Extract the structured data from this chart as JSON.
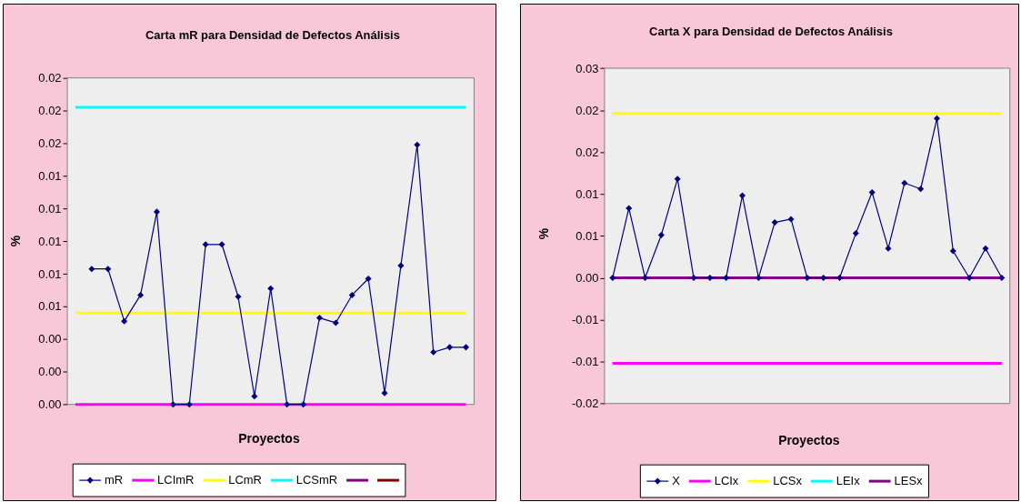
{
  "chart_data": [
    {
      "type": "line",
      "title": "Carta mR para Densidad de Defectos Análisis",
      "xlabel": "Proyectos",
      "ylabel": "%",
      "categories": [
        null,
        null,
        null,
        null,
        null,
        null,
        null,
        null,
        null,
        null,
        null,
        null,
        null,
        null,
        null,
        null,
        null,
        null,
        null,
        null,
        null,
        null,
        null,
        null,
        null
      ],
      "ylim": [
        0,
        0.02
      ],
      "yticks": [
        {
          "value": 0,
          "label": "0.00"
        },
        {
          "value": 0.002,
          "label": "0.00"
        },
        {
          "value": 0.004,
          "label": "0.00"
        },
        {
          "value": 0.006,
          "label": "0.01"
        },
        {
          "value": 0.008,
          "label": "0.01"
        },
        0.01,
        {
          "value": 0.012,
          "label": "0.01"
        },
        {
          "value": 0.014,
          "label": "0.01"
        },
        {
          "value": 0.016,
          "label": "0.02"
        },
        {
          "value": 0.018,
          "label": "0.02"
        },
        0.02
      ],
      "tick_labels": "y",
      "legend": "bottom",
      "series": [
        {
          "name": "mR",
          "color": "#000080",
          "marker": "diamond",
          "values": [
            null,
            0.0083,
            0.0083,
            0.0051,
            0.0067,
            0.0118,
            0,
            0,
            0.0098,
            0.0098,
            0.0066,
            0.0005,
            0.0071,
            0,
            0,
            0.0053,
            0.005,
            0.0067,
            0.0077,
            0.0007,
            0.0085,
            0.0159,
            0.0032,
            0.0035,
            0.0035
          ]
        },
        {
          "name": "LCImR",
          "color": "#ff00ff",
          "values": [
            0,
            0,
            0,
            0,
            0,
            0,
            0,
            0,
            0,
            0,
            0,
            0,
            0,
            0,
            0,
            0,
            0,
            0,
            0,
            0,
            0,
            0,
            0,
            0,
            0
          ]
        },
        {
          "name": "LCmR",
          "color": "#ffff00",
          "values": [
            0.0056,
            0.0056,
            0.0056,
            0.0056,
            0.0056,
            0.0056,
            0.0056,
            0.0056,
            0.0056,
            0.0056,
            0.0056,
            0.0056,
            0.0056,
            0.0056,
            0.0056,
            0.0056,
            0.0056,
            0.0056,
            0.0056,
            0.0056,
            0.0056,
            0.0056,
            0.0056,
            0.0056,
            0.0056
          ]
        },
        {
          "name": "LCSmR",
          "color": "#00ffff",
          "values": [
            0.0182,
            0.0182,
            0.0182,
            0.0182,
            0.0182,
            0.0182,
            0.0182,
            0.0182,
            0.0182,
            0.0182,
            0.0182,
            0.0182,
            0.0182,
            0.0182,
            0.0182,
            0.0182,
            0.0182,
            0.0182,
            0.0182,
            0.0182,
            0.0182,
            0.0182,
            0.0182,
            0.0182,
            0.0182
          ]
        },
        {
          "color": "#800080",
          "values": [
            null,
            null,
            null,
            null,
            null,
            null,
            null,
            null,
            null,
            null,
            null,
            null,
            null,
            null,
            null,
            null,
            null,
            null,
            null,
            null,
            null,
            null,
            null,
            null,
            null
          ]
        },
        {
          "color": "#800000",
          "values": [
            null,
            null,
            null,
            null,
            null,
            null,
            null,
            null,
            null,
            null,
            null,
            null,
            null,
            null,
            null,
            null,
            null,
            null,
            null,
            null,
            null,
            null,
            null,
            null,
            null
          ]
        }
      ]
    },
    {
      "type": "line",
      "title": "Carta X para Densidad de Defectos Análisis",
      "xlabel": "Proyectos",
      "ylabel": "%",
      "categories": [
        null,
        null,
        null,
        null,
        null,
        null,
        null,
        null,
        null,
        null,
        null,
        null,
        null,
        null,
        null,
        null,
        null,
        null,
        null,
        null,
        null,
        null,
        null,
        null,
        null
      ],
      "ylim": [
        -0.015,
        0.025
      ],
      "yticks": [
        {
          "value": -0.015,
          "label": "-0.02"
        },
        -0.01,
        {
          "value": -0.005,
          "label": "-0.01"
        },
        {
          "value": 0,
          "label": "0.00"
        },
        {
          "value": 0.005,
          "label": "0.01"
        },
        0.01,
        {
          "value": 0.015,
          "label": "0.02"
        },
        0.02,
        {
          "value": 0.025,
          "label": "0.03"
        }
      ],
      "tick_labels": "y",
      "legend": "bottom",
      "series": [
        {
          "name": "X",
          "color": "#000080",
          "marker": "diamond",
          "values": [
            0,
            0.0083,
            0,
            0.0051,
            0.0118,
            0,
            0,
            0,
            0.0098,
            0,
            0.0066,
            0.007,
            0,
            0,
            0,
            0.0053,
            0.0102,
            0.0035,
            0.0113,
            0.0106,
            0.019,
            0.0032,
            0,
            0.0035,
            0
          ]
        },
        {
          "name": "LCIx",
          "color": "#ff00ff",
          "values": [
            -0.0102,
            -0.0102,
            -0.0102,
            -0.0102,
            -0.0102,
            -0.0102,
            -0.0102,
            -0.0102,
            -0.0102,
            -0.0102,
            -0.0102,
            -0.0102,
            -0.0102,
            -0.0102,
            -0.0102,
            -0.0102,
            -0.0102,
            -0.0102,
            -0.0102,
            -0.0102,
            -0.0102,
            -0.0102,
            -0.0102,
            -0.0102,
            -0.0102
          ]
        },
        {
          "name": "LCSx",
          "color": "#ffff00",
          "values": [
            0.0196,
            0.0196,
            0.0196,
            0.0196,
            0.0196,
            0.0196,
            0.0196,
            0.0196,
            0.0196,
            0.0196,
            0.0196,
            0.0196,
            0.0196,
            0.0196,
            0.0196,
            0.0196,
            0.0196,
            0.0196,
            0.0196,
            0.0196,
            0.0196,
            0.0196,
            0.0196,
            0.0196,
            0.0196
          ]
        },
        {
          "name": "LEIx",
          "color": "#00ffff",
          "values": [
            null,
            null,
            null,
            null,
            null,
            null,
            null,
            null,
            null,
            null,
            null,
            null,
            null,
            null,
            null,
            null,
            null,
            null,
            null,
            null,
            null,
            null,
            null,
            null,
            null
          ]
        },
        {
          "name": "LESx",
          "color": "#800080",
          "values": [
            0,
            0,
            0,
            0,
            0,
            0,
            0,
            0,
            0,
            0,
            0,
            0,
            0,
            0,
            0,
            0,
            0,
            0,
            0,
            0,
            0,
            0,
            0,
            0,
            0
          ]
        }
      ]
    }
  ]
}
